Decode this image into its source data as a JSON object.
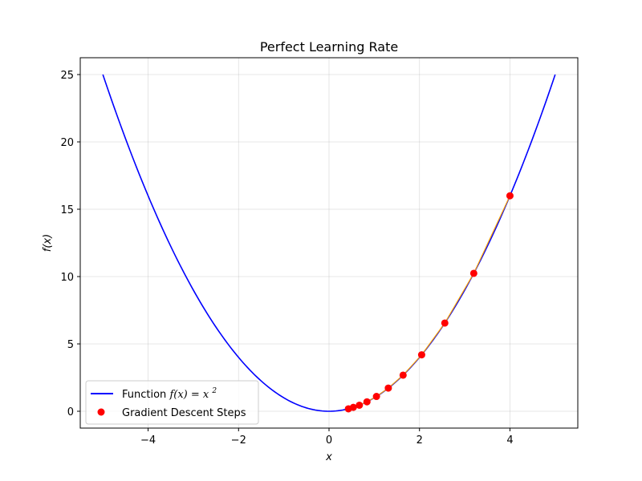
{
  "chart_data": {
    "type": "line",
    "title": "Perfect Learning Rate",
    "xlabel": "x",
    "ylabel": "f(x)",
    "xlim": [
      -5.5,
      5.5
    ],
    "ylim": [
      -1.25,
      26.25
    ],
    "xticks": [
      -4,
      -2,
      0,
      2,
      4
    ],
    "yticks": [
      0,
      5,
      10,
      15,
      20,
      25
    ],
    "xtick_labels": [
      "−4",
      "−2",
      "0",
      "2",
      "4"
    ],
    "ytick_labels": [
      "0",
      "5",
      "10",
      "15",
      "20",
      "25"
    ],
    "grid": true,
    "legend_position": "lower-left",
    "series": [
      {
        "name": "Function f(x) = x²",
        "kind": "line",
        "color": "#0000ff",
        "function": "x^2",
        "x_range": [
          -5,
          5
        ]
      },
      {
        "name": "Gradient Descent Steps",
        "kind": "scatter",
        "color": "#ff0000",
        "points": [
          {
            "x": 4.0,
            "y": 16.0
          },
          {
            "x": 3.2,
            "y": 10.24
          },
          {
            "x": 2.56,
            "y": 6.55
          },
          {
            "x": 2.048,
            "y": 4.19
          },
          {
            "x": 1.638,
            "y": 2.68
          },
          {
            "x": 1.311,
            "y": 1.72
          },
          {
            "x": 1.049,
            "y": 1.1
          },
          {
            "x": 0.839,
            "y": 0.7
          },
          {
            "x": 0.671,
            "y": 0.45
          },
          {
            "x": 0.537,
            "y": 0.29
          },
          {
            "x": 0.429,
            "y": 0.18
          }
        ]
      }
    ],
    "annotation_color": "#ffa500"
  },
  "legend": {
    "line_label_prefix": "Function ",
    "line_label_math": "f(x) = x",
    "line_label_sup": "2",
    "scatter_label": "Gradient Descent Steps"
  }
}
